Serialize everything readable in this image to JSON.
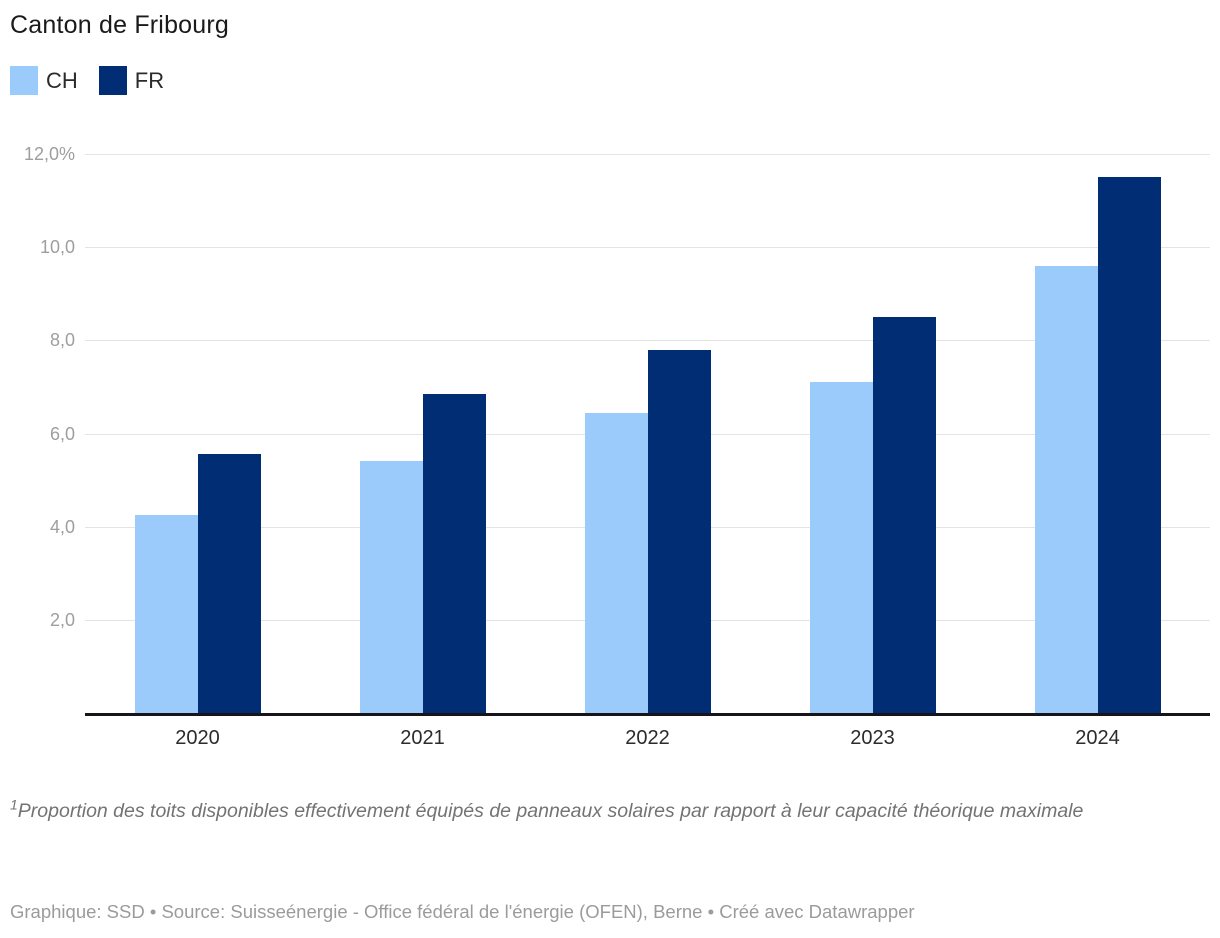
{
  "title": "Canton de Fribourg",
  "legend": {
    "items": [
      {
        "label": "CH",
        "color": "#9ACBFB"
      },
      {
        "label": "FR",
        "color": "#002D73"
      }
    ]
  },
  "chart_data": {
    "type": "bar",
    "title": "Canton de Fribourg",
    "categories": [
      "2020",
      "2021",
      "2022",
      "2023",
      "2024"
    ],
    "series": [
      {
        "name": "CH",
        "color": "#9ACBFB",
        "values": [
          4.25,
          5.4,
          6.45,
          7.1,
          9.6
        ]
      },
      {
        "name": "FR",
        "color": "#002D73",
        "values": [
          5.55,
          6.85,
          7.8,
          8.5,
          11.5
        ]
      }
    ],
    "unit": "%",
    "ylim": [
      0,
      12
    ],
    "yticks": [
      {
        "value": 12,
        "label": "12,0%"
      },
      {
        "value": 10,
        "label": "10,0"
      },
      {
        "value": 8,
        "label": "8,0"
      },
      {
        "value": 6,
        "label": "6,0"
      },
      {
        "value": 4,
        "label": "4,0"
      },
      {
        "value": 2,
        "label": "2,0"
      }
    ],
    "grid": true,
    "legend_position": "top-left"
  },
  "footnote": {
    "sup": "1",
    "text": "Proportion des toits disponibles effectivement équipés de panneaux solaires par rapport à leur capacité théorique maximale"
  },
  "source": "Graphique: SSD • Source: Suisseénergie - Office fédéral de l'énergie (OFEN), Berne • Créé avec Datawrapper",
  "colors": {
    "gridline": "#e4e4e4",
    "axis_line": "#15151a",
    "ytick_text": "#9e9e9e",
    "xtick_text": "#2b2b2b"
  }
}
